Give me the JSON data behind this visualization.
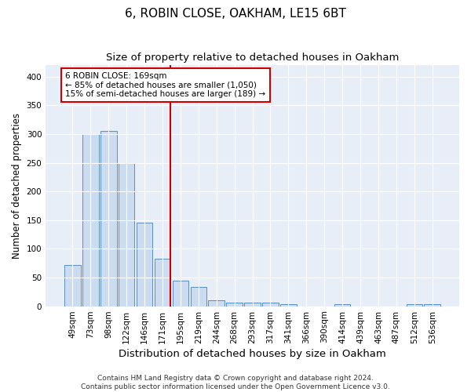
{
  "title": "6, ROBIN CLOSE, OAKHAM, LE15 6BT",
  "subtitle": "Size of property relative to detached houses in Oakham",
  "xlabel": "Distribution of detached houses by size in Oakham",
  "ylabel": "Number of detached properties",
  "bar_labels": [
    "49sqm",
    "73sqm",
    "98sqm",
    "122sqm",
    "146sqm",
    "171sqm",
    "195sqm",
    "219sqm",
    "244sqm",
    "268sqm",
    "293sqm",
    "317sqm",
    "341sqm",
    "366sqm",
    "390sqm",
    "414sqm",
    "439sqm",
    "463sqm",
    "487sqm",
    "512sqm",
    "536sqm"
  ],
  "bar_values": [
    72,
    300,
    305,
    250,
    145,
    83,
    45,
    34,
    10,
    6,
    6,
    6,
    3,
    0,
    0,
    3,
    0,
    0,
    0,
    3,
    3
  ],
  "bar_color": "#ccdcf0",
  "bar_edge_color": "#5b8ec4",
  "vline_color": "#cc0000",
  "annotation_title": "6 ROBIN CLOSE: 169sqm",
  "annotation_line1": "← 85% of detached houses are smaller (1,050)",
  "annotation_line2": "15% of semi-detached houses are larger (189) →",
  "annotation_box_color": "#ffffff",
  "annotation_box_edge": "#cc0000",
  "ylim": [
    0,
    420
  ],
  "fig_bg_color": "#ffffff",
  "plot_bg_color": "#e8eef8",
  "footer": "Contains HM Land Registry data © Crown copyright and database right 2024.\nContains public sector information licensed under the Open Government Licence v3.0.",
  "title_fontsize": 11,
  "subtitle_fontsize": 9.5,
  "xlabel_fontsize": 9.5,
  "ylabel_fontsize": 8.5,
  "tick_fontsize": 7.5,
  "annotation_fontsize": 7.5,
  "footer_fontsize": 6.5
}
